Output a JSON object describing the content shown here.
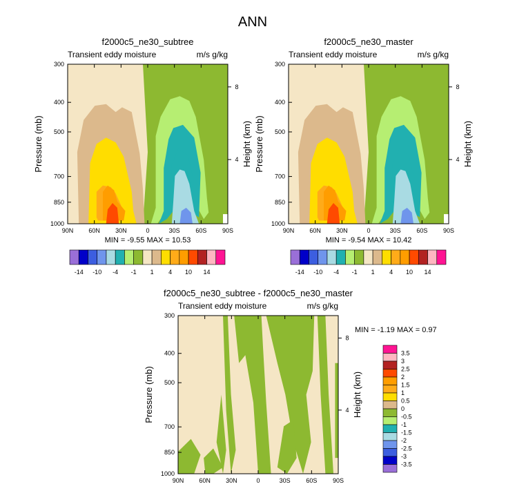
{
  "colors": {
    "c_m14": "#9a6fd8",
    "c_m10": "#0000c8",
    "c_m7": "#3c5ee0",
    "c_m4": "#6f95ec",
    "c_m2": "#a9dbe3",
    "c_m1b": "#21b0b0",
    "c_m1a": "#b6ee72",
    "c_m0": "#8db931",
    "c_p0": "#f5e6c5",
    "c_p1": "#dcb98c",
    "c_p2": "#ffdd00",
    "c_p4": "#ffab19",
    "c_p7": "#ff9d00",
    "c_p10": "#ff4a00",
    "c_p12": "#b22222",
    "c_p14": "#ffb6c1",
    "c_p16": "#ff1493",
    "diff_pos": "#f5e6c5",
    "diff_neg": "#8db931"
  },
  "chart_data": {
    "figure_title": "ANN",
    "panels": [
      {
        "type": "contour",
        "title": "f2000c5_ne30_subtree",
        "left_label": "Transient eddy moisture",
        "right_label": "m/s g/kg",
        "xlabel": "",
        "ylabel": "Pressure (mb)",
        "y2label": "Height (km)",
        "x_ticks": [
          "90N",
          "60N",
          "30N",
          "0",
          "30S",
          "60S",
          "90S"
        ],
        "x_range": [
          90,
          -90
        ],
        "y_ticks": [
          "300",
          "400",
          "500",
          "700",
          "850",
          "1000"
        ],
        "y_range_mb": [
          300,
          1000
        ],
        "height_ticks": [
          "8",
          "4"
        ],
        "stats": "MIN =  -9.55  MAX =  10.53",
        "min": -9.55,
        "max": 10.53
      },
      {
        "type": "contour",
        "title": "f2000c5_ne30_master",
        "left_label": "Transient eddy moisture",
        "right_label": "m/s g/kg",
        "xlabel": "",
        "ylabel": "Pressure (mb)",
        "y2label": "Height (km)",
        "x_ticks": [
          "90N",
          "60N",
          "30N",
          "0",
          "30S",
          "60S",
          "90S"
        ],
        "x_range": [
          90,
          -90
        ],
        "y_ticks": [
          "300",
          "400",
          "500",
          "700",
          "850",
          "1000"
        ],
        "y_range_mb": [
          300,
          1000
        ],
        "height_ticks": [
          "8",
          "4"
        ],
        "stats": "MIN =  -9.54  MAX =  10.42",
        "min": -9.54,
        "max": 10.42
      },
      {
        "type": "contour",
        "title": "f2000c5_ne30_subtree - f2000c5_ne30_master",
        "left_label": "Transient eddy moisture",
        "right_label": "m/s g/kg",
        "xlabel": "",
        "ylabel": "Pressure (mb)",
        "y2label": "Height (km)",
        "x_ticks": [
          "90N",
          "60N",
          "30N",
          "0",
          "30S",
          "60S",
          "90S"
        ],
        "x_range": [
          90,
          -90
        ],
        "y_ticks": [
          "300",
          "400",
          "500",
          "700",
          "850",
          "1000"
        ],
        "y_range_mb": [
          300,
          1000
        ],
        "height_ticks": [
          "8",
          "4"
        ],
        "stats": "MIN =  -1.19  MAX =   0.97",
        "min": -1.19,
        "max": 0.97
      }
    ],
    "colorbar_top": {
      "orientation": "horizontal",
      "labels": [
        "-14",
        "-10",
        "-4",
        "-1",
        "1",
        "4",
        "10",
        "14"
      ],
      "colors": [
        "#9a6fd8",
        "#0000c8",
        "#3c5ee0",
        "#6f95ec",
        "#a9dbe3",
        "#21b0b0",
        "#b6ee72",
        "#8db931",
        "#f5e6c5",
        "#dcb98c",
        "#ffdd00",
        "#ffab19",
        "#ff9d00",
        "#ff4a00",
        "#b22222",
        "#ffb6c1",
        "#ff1493"
      ]
    },
    "colorbar_diff": {
      "orientation": "vertical",
      "labels": [
        "3.5",
        "3",
        "2.5",
        "2",
        "1.5",
        "1",
        "0.5",
        "0",
        "-0.5",
        "-1",
        "-1.5",
        "-2",
        "-2.5",
        "-3",
        "-3.5"
      ],
      "colors": [
        "#ff1493",
        "#ffb6c1",
        "#b22222",
        "#ff4a00",
        "#ff9d00",
        "#ffab19",
        "#ffdd00",
        "#dcb98c",
        "#8db931",
        "#b6ee72",
        "#21b0b0",
        "#a9dbe3",
        "#6f95ec",
        "#3c5ee0",
        "#0000c8",
        "#9a6fd8"
      ]
    }
  }
}
